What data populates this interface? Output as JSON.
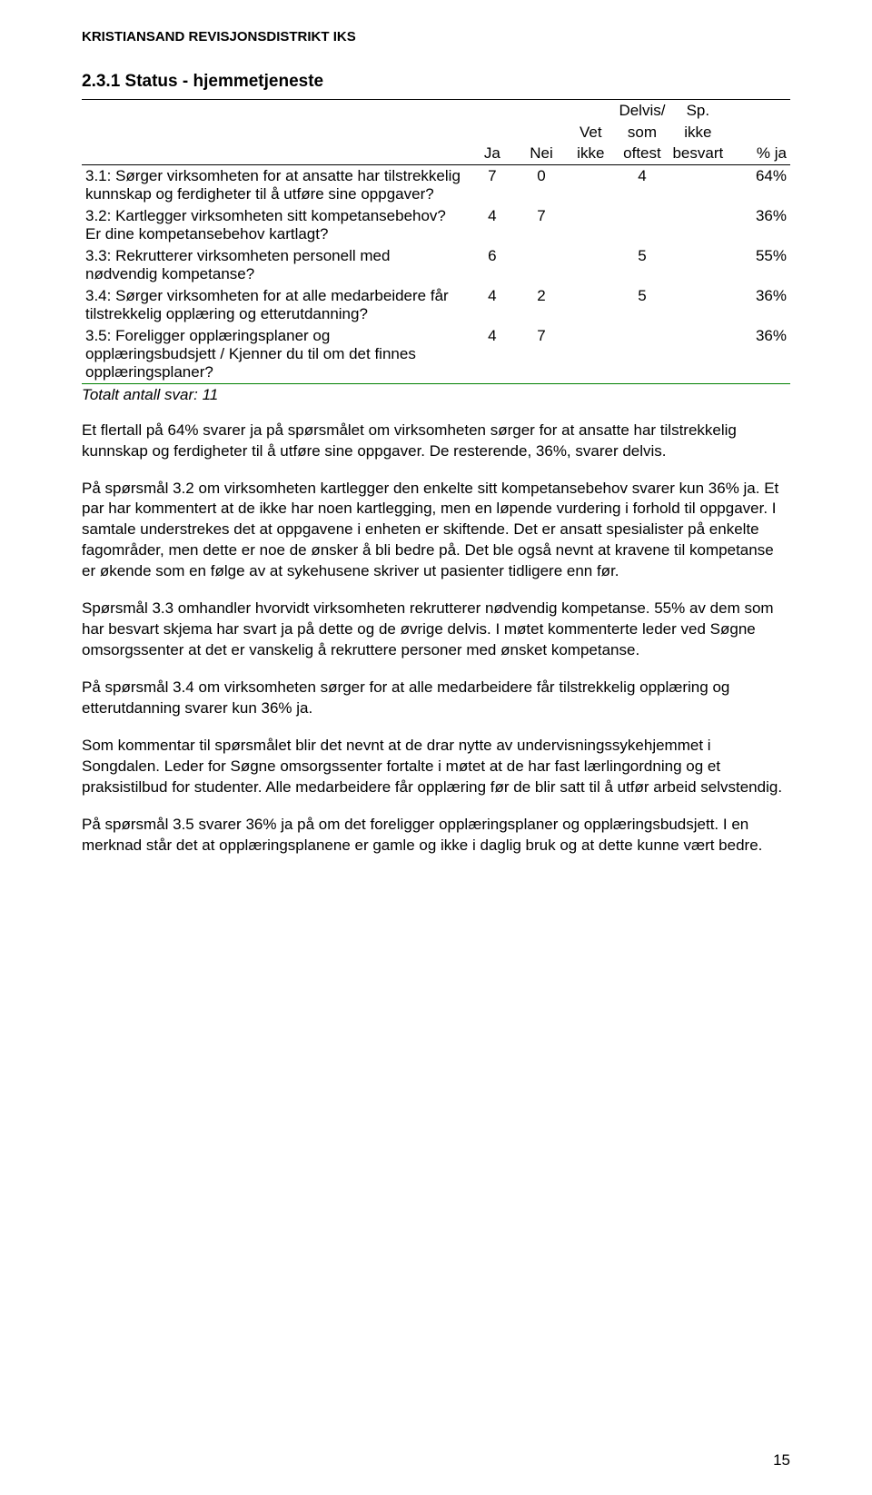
{
  "doc_header": "KRISTIANSAND REVISJONSDISTRIKT IKS",
  "section_title": "2.3.1 Status - hjemmetjeneste",
  "table": {
    "headers": {
      "ja": "Ja",
      "nei": "Nei",
      "vet_ikke_l1": "Vet",
      "vet_ikke_l2": "ikke",
      "delvis_l1": "Delvis/",
      "delvis_l2": "som",
      "delvis_l3": "oftest",
      "sp_l1": "Sp.",
      "sp_l2": "ikke",
      "sp_l3": "besvart",
      "pct_ja": "% ja"
    },
    "rows": [
      {
        "q": "3.1: Sørger virksomheten for at ansatte har tilstrekkelig kunnskap og ferdigheter til å utføre sine oppgaver?",
        "ja": "7",
        "nei": "0",
        "vet": "",
        "delvis": "4",
        "sp": "",
        "pct": "64%"
      },
      {
        "q": "3.2: Kartlegger virksomheten sitt kompetansebehov? Er dine kompetanse­behov kartlagt?",
        "ja": "4",
        "nei": "7",
        "vet": "",
        "delvis": "",
        "sp": "",
        "pct": "36%"
      },
      {
        "q": "3.3: Rekrutterer virksomheten personell med nødvendig kompetanse?",
        "ja": "6",
        "nei": "",
        "vet": "",
        "delvis": "5",
        "sp": "",
        "pct": "55%"
      },
      {
        "q": "3.4: Sørger virksomheten for at alle medarbeidere får tilstrekkelig opplæring og etterutdanning?",
        "ja": "4",
        "nei": "2",
        "vet": "",
        "delvis": "5",
        "sp": "",
        "pct": "36%"
      },
      {
        "q": "3.5: Foreligger opplæringsplaner og opplæringsbudsjett / Kjenner du til om det finnes opplæringsplaner?",
        "ja": "4",
        "nei": "7",
        "vet": "",
        "delvis": "",
        "sp": "",
        "pct": "36%"
      }
    ],
    "totals_label": "Totalt antall svar: 11",
    "border_color_top": "#000000",
    "border_color_green": "#008000"
  },
  "paragraphs": [
    "Et flertall på 64% svarer ja på spørsmålet om virksomheten sørger for at ansatte har tilstrekkelig kunnskap og ferdigheter til å utføre sine oppgaver. De resterende, 36%, svarer delvis.",
    "På spørsmål 3.2 om virksomheten kartlegger den enkelte sitt kompetansebehov svarer kun 36% ja. Et par har kommentert at de ikke har noen kartlegging, men en løpende vurdering i forhold til oppgaver. I samtale understrekes det at oppgavene i enheten er skiftende. Det er ansatt spesialister på enkelte fagområder, men dette er noe de ønsker å bli bedre på. Det ble også nevnt at kravene til kompetanse er økende som en følge av at sykehusene skriver ut pasienter tidligere enn før.",
    "Spørsmål 3.3 omhandler hvorvidt virksomheten rekrutterer nødvendig kompetanse. 55% av dem som har besvart skjema har svart ja på dette og de øvrige delvis. I møtet kommenterte leder ved Søgne omsorgssenter at det er vanskelig å rekruttere personer med ønsket kompetanse.",
    "På spørsmål 3.4 om virksomheten sørger for at alle medarbeidere får tilstrekkelig opplæring og etterutdanning svarer kun 36% ja.",
    "Som kommentar til spørsmålet blir det nevnt at de drar nytte av undervisnings­sykehjemmet i Songdalen. Leder for Søgne omsorgssenter fortalte i møtet at de har fast lærlingordning og et praksistilbud for studenter. Alle medarbeidere får opplæring før de blir satt til å utfør arbeid selvstendig.",
    "På spørsmål 3.5 svarer 36% ja på om det foreligger opplæringsplaner og opplærings­budsjett. I en merknad står det at opplæringsplanene er gamle og ikke i daglig bruk og at dette kunne vært bedre."
  ],
  "page_number": "15"
}
